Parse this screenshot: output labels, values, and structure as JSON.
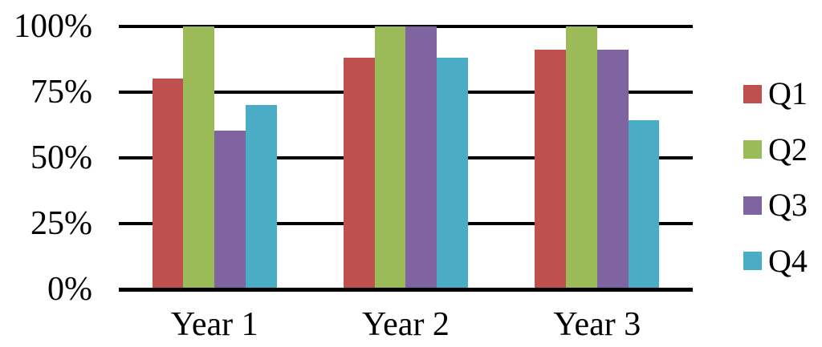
{
  "chart_data": {
    "type": "bar",
    "title": "",
    "categories": [
      "Year 1",
      "Year 2",
      "Year 3"
    ],
    "series": [
      {
        "name": "Q1",
        "color": "#C0504D",
        "values": [
          80,
          88,
          91
        ]
      },
      {
        "name": "Q2",
        "color": "#9BBB59",
        "values": [
          100,
          100,
          100
        ]
      },
      {
        "name": "Q3",
        "color": "#8064A2",
        "values": [
          60,
          100,
          91
        ]
      },
      {
        "name": "Q4",
        "color": "#4BACC6",
        "values": [
          70,
          88,
          64
        ]
      }
    ],
    "yticks": [
      {
        "label": "0%",
        "value": 0
      },
      {
        "label": "25%",
        "value": 25
      },
      {
        "label": "50%",
        "value": 50
      },
      {
        "label": "75%",
        "value": 75
      },
      {
        "label": "100%",
        "value": 100
      }
    ],
    "ylim": [
      0,
      100
    ],
    "xlabel": "",
    "ylabel": "",
    "grid": "horizontal",
    "legend_position": "right",
    "axis_color": "#000000",
    "text_color": "#000000"
  }
}
